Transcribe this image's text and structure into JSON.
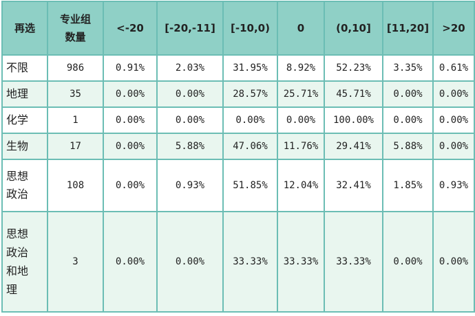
{
  "table": {
    "headers": [
      "再选",
      "专业组\n数量",
      "<-20",
      "[-20,-11]",
      "[-10,0)",
      "0",
      "(0,10]",
      "[11,20]",
      ">20"
    ],
    "rows": [
      {
        "category": "不限",
        "count": "986",
        "values": [
          "0.91%",
          "2.03%",
          "31.95%",
          "8.92%",
          "52.23%",
          "3.35%",
          "0.61%"
        ]
      },
      {
        "category": "地理",
        "count": "35",
        "values": [
          "0.00%",
          "0.00%",
          "28.57%",
          "25.71%",
          "45.71%",
          "0.00%",
          "0.00%"
        ]
      },
      {
        "category": "化学",
        "count": "1",
        "values": [
          "0.00%",
          "0.00%",
          "0.00%",
          "0.00%",
          "100.00%",
          "0.00%",
          "0.00%"
        ]
      },
      {
        "category": "生物",
        "count": "17",
        "values": [
          "0.00%",
          "5.88%",
          "47.06%",
          "11.76%",
          "29.41%",
          "5.88%",
          "0.00%"
        ]
      },
      {
        "category": "思想\n政治",
        "count": "108",
        "values": [
          "0.00%",
          "0.93%",
          "51.85%",
          "12.04%",
          "32.41%",
          "1.85%",
          "0.93%"
        ]
      },
      {
        "category": "思想\n政治\n和地\n理",
        "count": "3",
        "values": [
          "0.00%",
          "0.00%",
          "33.33%",
          "33.33%",
          "33.33%",
          "0.00%",
          "0.00%"
        ]
      }
    ]
  }
}
